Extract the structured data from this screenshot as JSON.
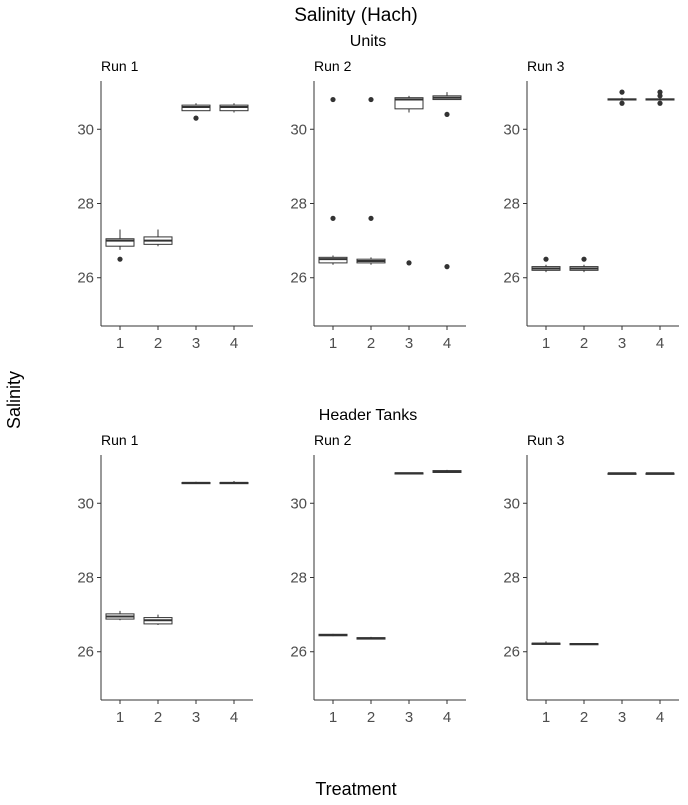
{
  "title": "Salinity (Hach)",
  "ylabel": "Salinity",
  "xlabel": "Treatment",
  "colors": {
    "box_stroke": "#333333",
    "box_fill": "#ffffff",
    "axis": "#333333",
    "tick_text": "#4d4d4d",
    "text": "#000000"
  },
  "chart_data": [
    {
      "type": "box",
      "section": "Units",
      "panel": "Run 1",
      "ylim": [
        24.7,
        31.3
      ],
      "yticks": [
        26,
        28,
        30
      ],
      "categories": [
        "1",
        "2",
        "3",
        "4"
      ],
      "boxes": [
        {
          "treatment": "1",
          "whisker_low": 26.75,
          "q1": 26.85,
          "median": 27.0,
          "q3": 27.05,
          "whisker_high": 27.3,
          "outliers": [
            26.5
          ]
        },
        {
          "treatment": "2",
          "whisker_low": 26.85,
          "q1": 26.9,
          "median": 27.0,
          "q3": 27.1,
          "whisker_high": 27.3,
          "outliers": []
        },
        {
          "treatment": "3",
          "whisker_low": 30.5,
          "q1": 30.5,
          "median": 30.6,
          "q3": 30.65,
          "whisker_high": 30.7,
          "outliers": [
            30.3
          ]
        },
        {
          "treatment": "4",
          "whisker_low": 30.45,
          "q1": 30.5,
          "median": 30.6,
          "q3": 30.65,
          "whisker_high": 30.7,
          "outliers": []
        }
      ]
    },
    {
      "type": "box",
      "section": "Units",
      "panel": "Run 2",
      "ylim": [
        24.7,
        31.3
      ],
      "yticks": [
        26,
        28,
        30
      ],
      "categories": [
        "1",
        "2",
        "3",
        "4"
      ],
      "boxes": [
        {
          "treatment": "1",
          "whisker_low": 26.35,
          "q1": 26.4,
          "median": 26.5,
          "q3": 26.55,
          "whisker_high": 26.6,
          "outliers": [
            27.6,
            30.8
          ]
        },
        {
          "treatment": "2",
          "whisker_low": 26.35,
          "q1": 26.4,
          "median": 26.45,
          "q3": 26.5,
          "whisker_high": 26.55,
          "outliers": [
            27.6,
            30.8
          ]
        },
        {
          "treatment": "3",
          "whisker_low": 30.45,
          "q1": 30.55,
          "median": 30.8,
          "q3": 30.85,
          "whisker_high": 30.9,
          "outliers": [
            26.4
          ]
        },
        {
          "treatment": "4",
          "whisker_low": 30.8,
          "q1": 30.8,
          "median": 30.85,
          "q3": 30.9,
          "whisker_high": 31.0,
          "outliers": [
            30.4,
            26.3
          ]
        }
      ]
    },
    {
      "type": "box",
      "section": "Units",
      "panel": "Run 3",
      "ylim": [
        24.7,
        31.3
      ],
      "yticks": [
        26,
        28,
        30
      ],
      "categories": [
        "1",
        "2",
        "3",
        "4"
      ],
      "boxes": [
        {
          "treatment": "1",
          "whisker_low": 26.15,
          "q1": 26.2,
          "median": 26.25,
          "q3": 26.3,
          "whisker_high": 26.35,
          "outliers": [
            26.5
          ]
        },
        {
          "treatment": "2",
          "whisker_low": 26.15,
          "q1": 26.2,
          "median": 26.25,
          "q3": 26.3,
          "whisker_high": 26.35,
          "outliers": [
            26.5
          ]
        },
        {
          "treatment": "3",
          "whisker_low": 30.8,
          "q1": 30.8,
          "median": 30.8,
          "q3": 30.82,
          "whisker_high": 30.85,
          "outliers": [
            31.0,
            30.7
          ]
        },
        {
          "treatment": "4",
          "whisker_low": 30.8,
          "q1": 30.8,
          "median": 30.8,
          "q3": 30.82,
          "whisker_high": 30.85,
          "outliers": [
            31.0,
            30.9,
            30.7
          ]
        }
      ]
    },
    {
      "type": "box",
      "section": "Header Tanks",
      "panel": "Run 1",
      "ylim": [
        24.7,
        31.3
      ],
      "yticks": [
        26,
        28,
        30
      ],
      "categories": [
        "1",
        "2",
        "3",
        "4"
      ],
      "boxes": [
        {
          "treatment": "1",
          "whisker_low": 26.85,
          "q1": 26.88,
          "median": 26.95,
          "q3": 27.02,
          "whisker_high": 27.1,
          "outliers": []
        },
        {
          "treatment": "2",
          "whisker_low": 26.72,
          "q1": 26.75,
          "median": 26.85,
          "q3": 26.92,
          "whisker_high": 27.0,
          "outliers": []
        },
        {
          "treatment": "3",
          "whisker_low": 30.52,
          "q1": 30.54,
          "median": 30.55,
          "q3": 30.56,
          "whisker_high": 30.58,
          "outliers": []
        },
        {
          "treatment": "4",
          "whisker_low": 30.52,
          "q1": 30.54,
          "median": 30.55,
          "q3": 30.56,
          "whisker_high": 30.6,
          "outliers": []
        }
      ]
    },
    {
      "type": "box",
      "section": "Header Tanks",
      "panel": "Run 2",
      "ylim": [
        24.7,
        31.3
      ],
      "yticks": [
        26,
        28,
        30
      ],
      "categories": [
        "1",
        "2",
        "3",
        "4"
      ],
      "boxes": [
        {
          "treatment": "1",
          "whisker_low": 26.42,
          "q1": 26.43,
          "median": 26.45,
          "q3": 26.47,
          "whisker_high": 26.48,
          "outliers": []
        },
        {
          "treatment": "2",
          "whisker_low": 26.33,
          "q1": 26.34,
          "median": 26.36,
          "q3": 26.38,
          "whisker_high": 26.4,
          "outliers": []
        },
        {
          "treatment": "3",
          "whisker_low": 30.79,
          "q1": 30.8,
          "median": 30.81,
          "q3": 30.82,
          "whisker_high": 30.83,
          "outliers": []
        },
        {
          "treatment": "4",
          "whisker_low": 30.82,
          "q1": 30.83,
          "median": 30.85,
          "q3": 30.88,
          "whisker_high": 30.9,
          "outliers": []
        }
      ]
    },
    {
      "type": "box",
      "section": "Header Tanks",
      "panel": "Run 3",
      "ylim": [
        24.7,
        31.3
      ],
      "yticks": [
        26,
        28,
        30
      ],
      "categories": [
        "1",
        "2",
        "3",
        "4"
      ],
      "boxes": [
        {
          "treatment": "1",
          "whisker_low": 26.2,
          "q1": 26.21,
          "median": 26.22,
          "q3": 26.23,
          "whisker_high": 26.28,
          "outliers": []
        },
        {
          "treatment": "2",
          "whisker_low": 26.2,
          "q1": 26.2,
          "median": 26.21,
          "q3": 26.22,
          "whisker_high": 26.23,
          "outliers": []
        },
        {
          "treatment": "3",
          "whisker_low": 30.8,
          "q1": 30.8,
          "median": 30.81,
          "q3": 30.81,
          "whisker_high": 30.82,
          "outliers": []
        },
        {
          "treatment": "4",
          "whisker_low": 30.8,
          "q1": 30.8,
          "median": 30.81,
          "q3": 30.81,
          "whisker_high": 30.82,
          "outliers": []
        }
      ]
    }
  ]
}
